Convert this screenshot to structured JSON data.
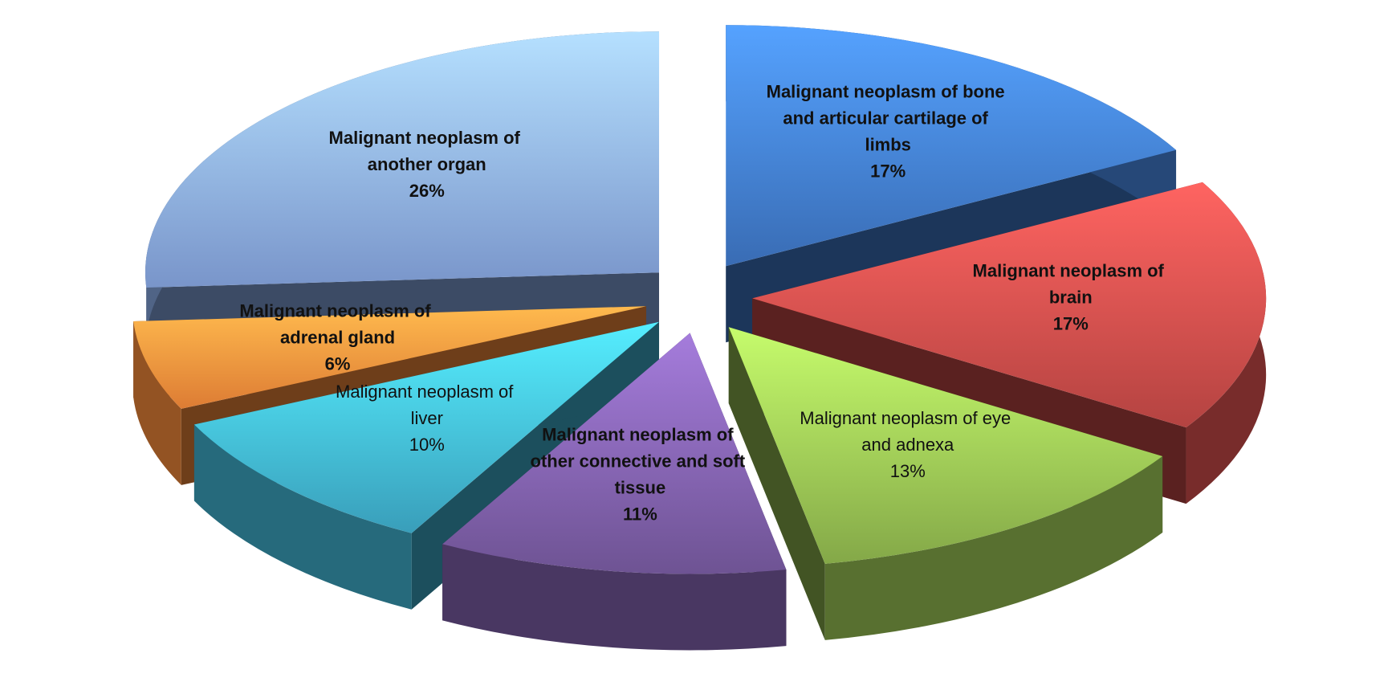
{
  "chart_data": {
    "type": "pie3d",
    "categories": [
      "Malignant neoplasm of bone and articular cartilage of limbs",
      "Malignant neoplasm of brain",
      "Malignant neoplasm of eye and adnexa",
      "Malignant neoplasm of other connective and soft tissue",
      "Malignant neoplasm of liver",
      "Malignant neoplasm of adrenal gland",
      "Malignant neoplasm of another organ"
    ],
    "values": [
      17,
      17,
      13,
      11,
      10,
      6,
      26
    ],
    "value_labels": [
      "17%",
      "17%",
      "13%",
      "11%",
      "10%",
      "6%",
      "26%"
    ],
    "colors": [
      "#3f78c8",
      "#c84a48",
      "#93bb50",
      "#7a5ca3",
      "#3fb0cf",
      "#f58a3a",
      "#86a6e0"
    ],
    "label_weight": [
      "bold",
      "bold",
      "normal",
      "bold",
      "normal",
      "bold",
      "bold"
    ],
    "exploded": true
  }
}
